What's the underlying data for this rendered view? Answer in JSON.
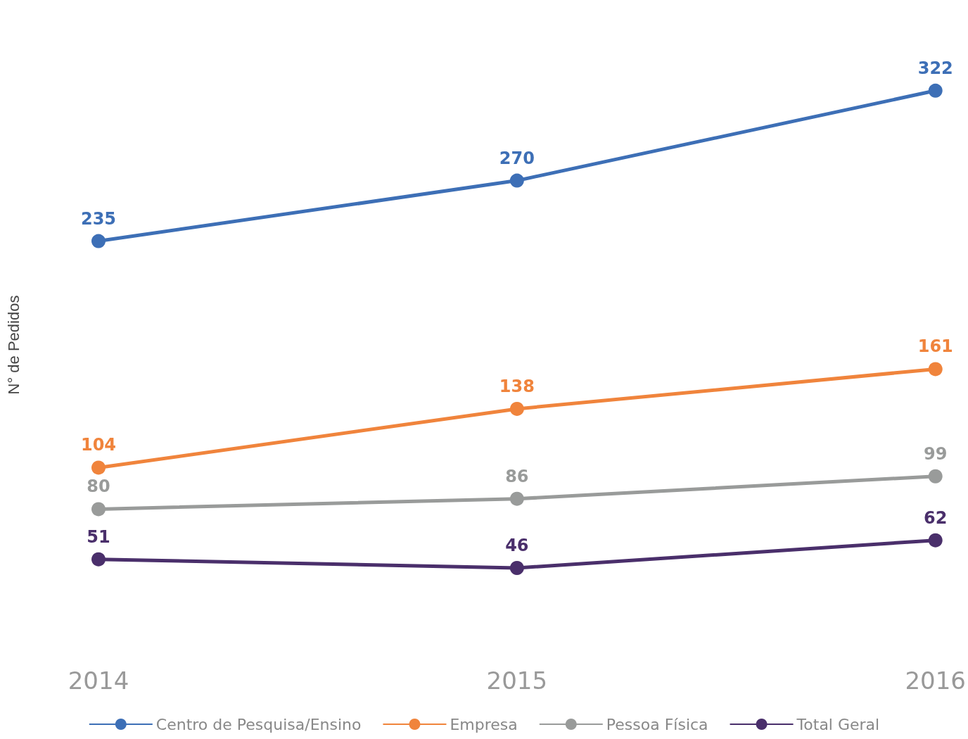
{
  "chart_data": {
    "type": "line",
    "ylabel": "N° de Pedidos",
    "categories": [
      "2014",
      "2015",
      "2016"
    ],
    "series": [
      {
        "name": "Centro de Pesquisa/Ensino",
        "color": "#3d6fb6",
        "values": [
          235,
          270,
          322
        ]
      },
      {
        "name": "Empresa",
        "color": "#f0843c",
        "values": [
          104,
          138,
          161
        ]
      },
      {
        "name": "Pessoa Física",
        "color": "#999b9a",
        "values": [
          80,
          86,
          99
        ]
      },
      {
        "name": "Total Geral",
        "color": "#4a2f6b",
        "values": [
          51,
          46,
          62
        ]
      }
    ],
    "data_labels": true,
    "legend": "bottom",
    "marker": "circle",
    "tick_labels": "x"
  }
}
